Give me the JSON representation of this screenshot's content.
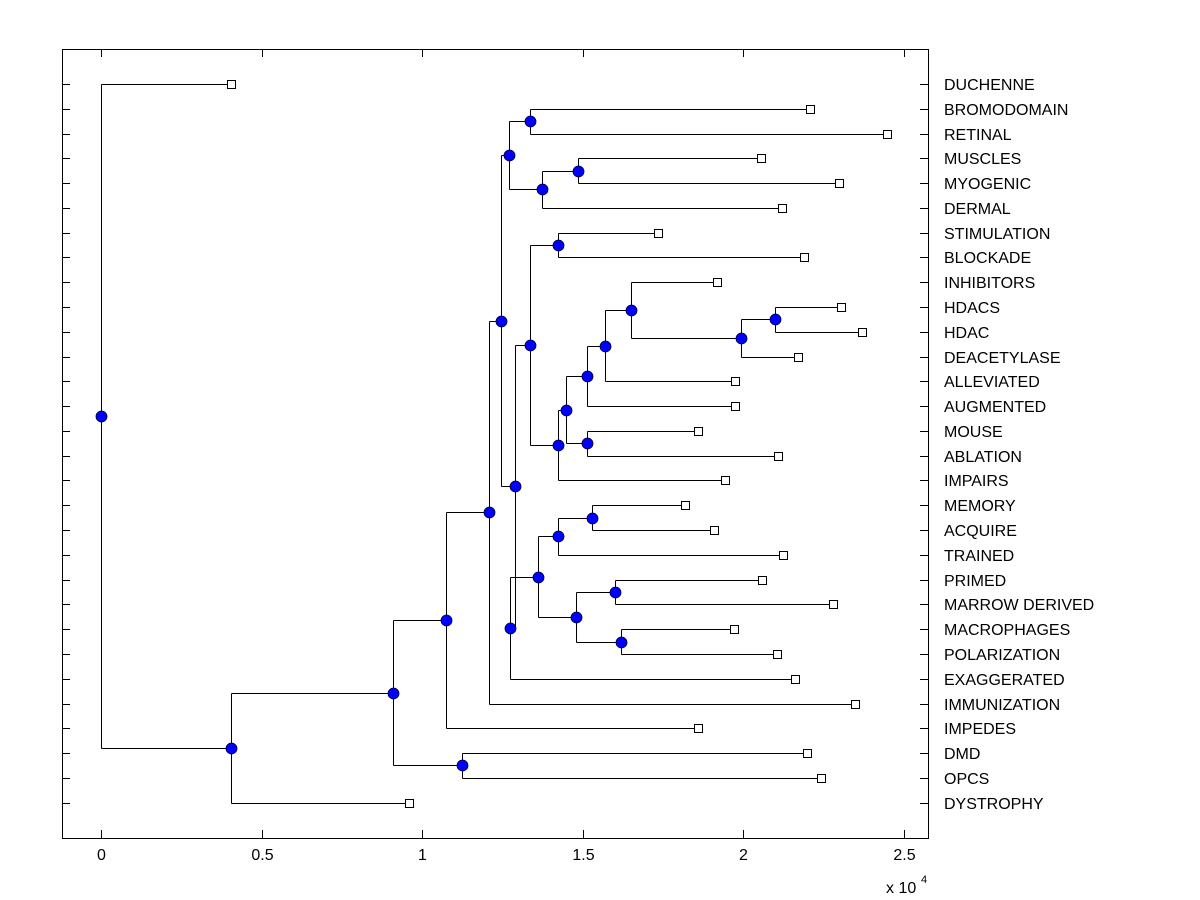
{
  "chart_data": {
    "type": "dendrogram",
    "title": "",
    "xlabel": "",
    "ylabel": "",
    "x_scale_note": "x 10^4",
    "x_multiplier_label": {
      "base": "x 10",
      "exponent": "4"
    },
    "xlim": [
      -0.12,
      2.58
    ],
    "xticks": [
      0,
      0.5,
      1,
      1.5,
      2,
      2.5
    ],
    "xtick_labels": [
      "0",
      "0.5",
      "1",
      "1.5",
      "2",
      "2.5"
    ],
    "grid": false,
    "colors": {
      "internal_node": "#0000ff",
      "leaf_node": "#ffffff",
      "line": "#000000"
    },
    "leaves": [
      {
        "id": "DUCHENNE",
        "x": 0.405
      },
      {
        "id": "BROMODOMAIN",
        "x": 2.21
      },
      {
        "id": "RETINAL",
        "x": 2.45
      },
      {
        "id": "MUSCLES",
        "x": 2.055
      },
      {
        "id": "MYOGENIC",
        "x": 2.3
      },
      {
        "id": "DERMAL",
        "x": 2.12
      },
      {
        "id": "STIMULATION",
        "x": 1.735
      },
      {
        "id": "BLOCKADE",
        "x": 2.19
      },
      {
        "id": "INHIBITORS",
        "x": 1.92
      },
      {
        "id": "HDACS",
        "x": 2.305
      },
      {
        "id": "HDAC",
        "x": 2.37
      },
      {
        "id": "DEACETYLASE",
        "x": 2.17
      },
      {
        "id": "ALLEVIATED",
        "x": 1.975
      },
      {
        "id": "AUGMENTED",
        "x": 1.975
      },
      {
        "id": "MOUSE",
        "x": 1.86
      },
      {
        "id": "ABLATION",
        "x": 2.11
      },
      {
        "id": "IMPAIRS",
        "x": 1.945
      },
      {
        "id": "MEMORY",
        "x": 1.82
      },
      {
        "id": "ACQUIRE",
        "x": 1.91
      },
      {
        "id": "TRAINED",
        "x": 2.125
      },
      {
        "id": "PRIMED",
        "x": 2.06
      },
      {
        "id": "MARROW DERIVED",
        "x": 2.28
      },
      {
        "id": "MACROPHAGES",
        "x": 1.972
      },
      {
        "id": "POLARIZATION",
        "x": 2.105
      },
      {
        "id": "EXAGGERATED",
        "x": 2.162
      },
      {
        "id": "IMMUNIZATION",
        "x": 2.35
      },
      {
        "id": "IMPEDES",
        "x": 1.86
      },
      {
        "id": "DMD",
        "x": 2.2
      },
      {
        "id": "OPCS",
        "x": 2.243
      },
      {
        "id": "DYSTROPHY",
        "x": 0.96
      }
    ],
    "nodes": [
      {
        "id": "n_root",
        "x": 0.0,
        "children": [
          "DUCHENNE",
          "n_A"
        ]
      },
      {
        "id": "n_A",
        "x": 0.405,
        "children": [
          "n_B",
          "DYSTROPHY"
        ]
      },
      {
        "id": "n_B",
        "x": 0.91,
        "children": [
          "n_C",
          "n_D"
        ]
      },
      {
        "id": "n_D",
        "x": 1.125,
        "children": [
          "DMD",
          "OPCS"
        ]
      },
      {
        "id": "n_C",
        "x": 1.075,
        "children": [
          "n_E",
          "IMPEDES"
        ]
      },
      {
        "id": "n_E",
        "x": 1.21,
        "children": [
          "n_F",
          "IMMUNIZATION"
        ]
      },
      {
        "id": "n_F",
        "x": 1.245,
        "children": [
          "n_G",
          "n_H"
        ]
      },
      {
        "id": "n_G",
        "x": 1.27,
        "children": [
          "n_I",
          "n_J"
        ]
      },
      {
        "id": "n_I",
        "x": 1.335,
        "children": [
          "BROMODOMAIN",
          "RETINAL"
        ]
      },
      {
        "id": "n_J",
        "x": 1.375,
        "children": [
          "n_K",
          "DERMAL"
        ]
      },
      {
        "id": "n_K",
        "x": 1.485,
        "children": [
          "MUSCLES",
          "MYOGENIC"
        ]
      },
      {
        "id": "n_H",
        "x": 1.29,
        "children": [
          "n_L",
          "n_M"
        ]
      },
      {
        "id": "n_L",
        "x": 1.335,
        "children": [
          "n_N",
          "n_O"
        ]
      },
      {
        "id": "n_N",
        "x": 1.425,
        "children": [
          "STIMULATION",
          "BLOCKADE"
        ]
      },
      {
        "id": "n_O",
        "x": 1.425,
        "children": [
          "n_P",
          "IMPAIRS"
        ]
      },
      {
        "id": "n_P",
        "x": 1.45,
        "children": [
          "n_Q",
          "n_R"
        ]
      },
      {
        "id": "n_Q",
        "x": 1.515,
        "children": [
          "n_S",
          "AUGMENTED"
        ]
      },
      {
        "id": "n_S",
        "x": 1.57,
        "children": [
          "n_T",
          "ALLEVIATED"
        ]
      },
      {
        "id": "n_T",
        "x": 1.65,
        "children": [
          "INHIBITORS",
          "n_U"
        ]
      },
      {
        "id": "n_U",
        "x": 1.995,
        "children": [
          "n_V",
          "DEACETYLASE"
        ]
      },
      {
        "id": "n_V",
        "x": 2.1,
        "children": [
          "HDACS",
          "HDAC"
        ]
      },
      {
        "id": "n_R",
        "x": 1.515,
        "children": [
          "MOUSE",
          "ABLATION"
        ]
      },
      {
        "id": "n_M",
        "x": 1.275,
        "children": [
          "n_W",
          "EXAGGERATED"
        ]
      },
      {
        "id": "n_W",
        "x": 1.36,
        "children": [
          "n_X",
          "n_Y"
        ]
      },
      {
        "id": "n_X",
        "x": 1.425,
        "children": [
          "n_Z",
          "TRAINED"
        ]
      },
      {
        "id": "n_Z",
        "x": 1.53,
        "children": [
          "MEMORY",
          "ACQUIRE"
        ]
      },
      {
        "id": "n_Y",
        "x": 1.48,
        "children": [
          "n_AA",
          "n_AB"
        ]
      },
      {
        "id": "n_AA",
        "x": 1.6,
        "children": [
          "PRIMED",
          "MARROW DERIVED"
        ]
      },
      {
        "id": "n_AB",
        "x": 1.62,
        "children": [
          "MACROPHAGES",
          "POLARIZATION"
        ]
      }
    ]
  }
}
